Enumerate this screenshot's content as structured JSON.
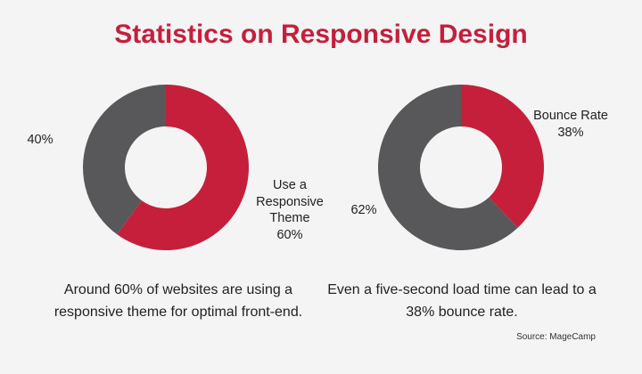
{
  "title": "Statistics on Responsive Design",
  "chart_data": [
    {
      "type": "donut",
      "categories": [
        "Use a Responsive Theme",
        null
      ],
      "values": [
        60,
        40
      ],
      "value_labels": [
        "60%",
        "40%"
      ],
      "colors": [
        "#c51f3b",
        "#58585a"
      ],
      "caption": "Around 60% of websites are using a responsive theme for optimal front-end."
    },
    {
      "type": "donut",
      "categories": [
        "Bounce Rate",
        null
      ],
      "values": [
        38,
        62
      ],
      "value_labels": [
        "38%",
        "62%"
      ],
      "colors": [
        "#c51f3b",
        "#58585a"
      ],
      "caption": "Even a five-second load time can lead to a 38% bounce rate."
    }
  ],
  "source": "Source: MageCamp"
}
